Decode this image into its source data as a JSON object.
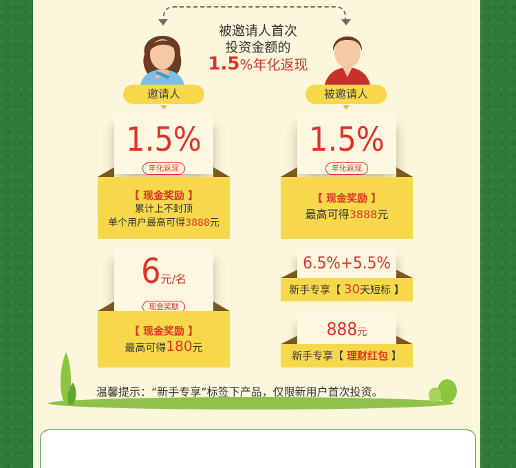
{
  "center": {
    "line1": "被邀请人首次",
    "line2": "投资金额的",
    "rate": "1.5",
    "rate_suffix": "%年化返现"
  },
  "inviter": {
    "label": "邀请人",
    "card1": {
      "value": "1.5%",
      "tag": "年化返现",
      "title": "【 现金奖励 】",
      "line1": "累计上不封顶",
      "line2_prefix": "单个用户最高可得",
      "line2_amount": "3888",
      "line2_suffix": "元"
    },
    "card2": {
      "value": "6",
      "unit": "元/名",
      "tag": "现金奖励",
      "title": "【 现金奖励 】",
      "line_prefix": "最高可得",
      "line_amount": "180",
      "line_suffix": "元"
    }
  },
  "invitee": {
    "label": "被邀请人",
    "card1": {
      "value": "1.5%",
      "tag": "年化返现",
      "title": "【 现金奖励 】",
      "line_prefix": "最高可得",
      "line_amount": "3888",
      "line_suffix": "元"
    },
    "card2": {
      "value": "6.5%+5.5%",
      "line_prefix": "新手专享【 ",
      "line_highlight": "30",
      "line_suffix": "天短标 】"
    },
    "card3": {
      "value": "888",
      "unit": "元",
      "line_prefix": "新手专享【 ",
      "line_highlight": "理财红包",
      "line_suffix": " 】"
    }
  },
  "tip": "温馨提示：“新手专享”标签下产品，仅限新用户首次投资。",
  "colors": {
    "accent": "#e1322a",
    "yellow": "#f7d84a",
    "green": "#2e7a38"
  }
}
